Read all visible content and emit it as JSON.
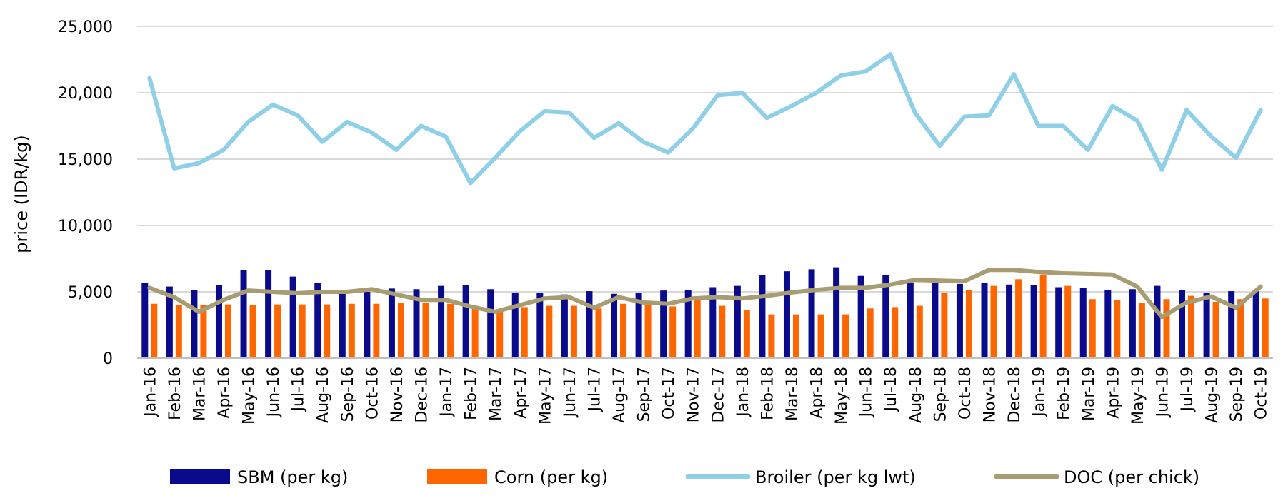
{
  "chart_data": {
    "type": "bar+line",
    "title": "",
    "xlabel": "",
    "ylabel": "price (IDR/kg)",
    "ylim": [
      0,
      25000
    ],
    "yticks": [
      0,
      5000,
      10000,
      15000,
      20000,
      25000
    ],
    "ytick_labels": [
      "0",
      "5,000",
      "10,000",
      "15,000",
      "20,000",
      "25,000"
    ],
    "grid": "horizontal",
    "legend_position": "bottom",
    "categories": [
      "Jan-16",
      "Feb-16",
      "Mar-16",
      "Apr-16",
      "May-16",
      "Jun-16",
      "Jul-16",
      "Aug-16",
      "Sep-16",
      "Oct-16",
      "Nov-16",
      "Dec-16",
      "Jan-17",
      "Feb-17",
      "Mar-17",
      "Apr-17",
      "May-17",
      "Jun-17",
      "Jul-17",
      "Aug-17",
      "Sep-17",
      "Oct-17",
      "Nov-17",
      "Dec-17",
      "Jan-18",
      "Feb-18",
      "Mar-18",
      "Apr-18",
      "May-18",
      "Jun-18",
      "Jul-18",
      "Aug-18",
      "Sep-18",
      "Oct-18",
      "Nov-18",
      "Dec-18",
      "Jan-19",
      "Feb-19",
      "Mar-19",
      "Apr-19",
      "May-19",
      "Jun-19",
      "Jul-19",
      "Aug-19",
      "Sep-19",
      "Oct-19"
    ],
    "series": [
      {
        "name": "SBM (per kg)",
        "kind": "bar",
        "color": "#0A0A8C",
        "values": [
          5700,
          5400,
          5150,
          5500,
          6650,
          6650,
          6150,
          5650,
          4950,
          5000,
          5250,
          5200,
          5450,
          5500,
          5200,
          4950,
          4900,
          4800,
          5050,
          4850,
          4900,
          5100,
          5150,
          5350,
          5450,
          6250,
          6550,
          6700,
          6850,
          6200,
          6250,
          5700,
          5650,
          5600,
          5650,
          5550,
          5500,
          5350,
          5300,
          5150,
          5200,
          5450,
          5150,
          4900,
          5050,
          5100
        ]
      },
      {
        "name": "Corn (per kg)",
        "kind": "bar",
        "color": "#FF6600",
        "values": [
          4100,
          4000,
          4000,
          4050,
          4000,
          4050,
          4050,
          4050,
          4100,
          4100,
          4150,
          4150,
          4100,
          3750,
          3500,
          3850,
          3950,
          3950,
          3750,
          4100,
          4000,
          3900,
          4450,
          3950,
          3600,
          3300,
          3300,
          3300,
          3300,
          3750,
          3850,
          3950,
          4950,
          5150,
          5450,
          5950,
          6300,
          5450,
          4450,
          4400,
          4150,
          4450,
          4700,
          4250,
          4450,
          4500
        ]
      },
      {
        "name": "Broiler (per kg lwt)",
        "kind": "line",
        "color": "#8FD0E8",
        "values": [
          21100,
          14300,
          14700,
          15700,
          17800,
          19100,
          18300,
          16300,
          17800,
          17000,
          15700,
          17500,
          16700,
          13200,
          15100,
          17100,
          18600,
          18500,
          16600,
          17700,
          16300,
          15500,
          17300,
          19800,
          20000,
          18100,
          19000,
          20000,
          21300,
          21600,
          22900,
          18500,
          16000,
          18200,
          18300,
          21400,
          17500,
          17500,
          15700,
          19000,
          17900,
          14200,
          18700,
          16700,
          15100,
          18700
        ]
      },
      {
        "name": "DOC (per chick)",
        "kind": "line",
        "color": "#A89C72",
        "values": [
          5300,
          4600,
          3500,
          4400,
          5100,
          5000,
          4900,
          5000,
          5000,
          5200,
          4800,
          4400,
          4400,
          3900,
          3500,
          4000,
          4500,
          4600,
          3800,
          4600,
          4200,
          4100,
          4500,
          4600,
          4500,
          4700,
          4950,
          5150,
          5300,
          5300,
          5550,
          5900,
          5850,
          5800,
          6650,
          6650,
          6500,
          6400,
          6350,
          6300,
          5400,
          3100,
          4200,
          4650,
          3800,
          5400
        ]
      }
    ]
  }
}
